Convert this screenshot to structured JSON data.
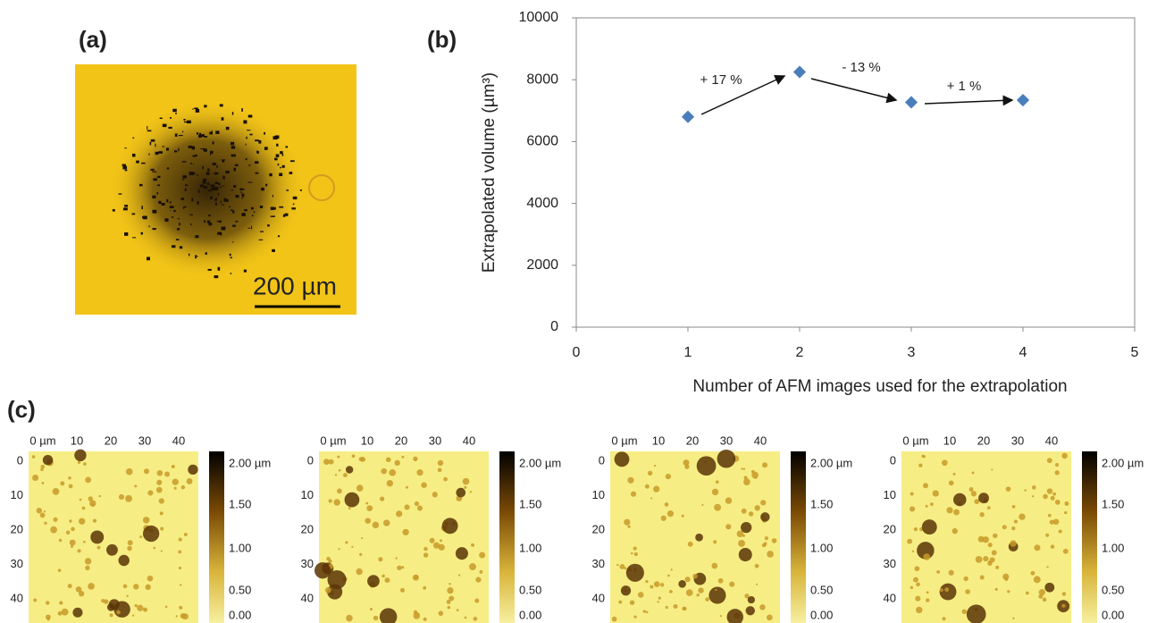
{
  "panel_labels": [
    "(a)",
    "(b)",
    "(c)"
  ],
  "micrograph": {
    "scale_bar": "200 µm"
  },
  "chart_data": {
    "type": "scatter",
    "x_label": "Number of AFM images used for the extrapolation",
    "y_label": "Extrapolated volume (µm³)",
    "x": [
      1,
      2,
      3,
      4
    ],
    "series": [
      {
        "color": "#4a7ebb",
        "values": [
          6800,
          8250,
          7270,
          7340
        ]
      }
    ],
    "xlim": [
      0,
      5
    ],
    "xticks": [
      0,
      1,
      2,
      3,
      4,
      5
    ],
    "ylim": [
      0,
      10000
    ],
    "yticks": [
      0,
      2000,
      4000,
      6000,
      8000,
      10000
    ],
    "annotations": [
      "+ 17 %",
      "- 13 %",
      "+ 1 %"
    ]
  },
  "afm": {
    "x_ticks": [
      "0 µm",
      "10",
      "20",
      "30",
      "40"
    ],
    "y_ticks": [
      "0",
      "10",
      "20",
      "30",
      "40"
    ],
    "colorbar_ticks": [
      "2.00 µm",
      "1.50",
      "1.00",
      "0.50",
      "0.00"
    ]
  }
}
